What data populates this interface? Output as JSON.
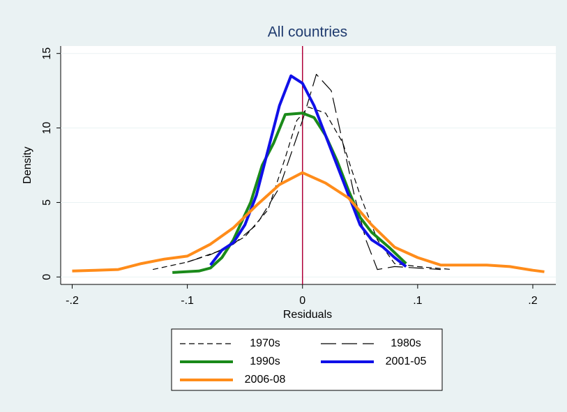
{
  "chart_data": {
    "type": "line",
    "title": "All countries",
    "x_label": "Residuals",
    "y_label": "Density",
    "xlim": [
      -0.21,
      0.22
    ],
    "ylim": [
      -0.5,
      15.5
    ],
    "xticks": [
      {
        "value": -0.2,
        "label": "-.2"
      },
      {
        "value": -0.1,
        "label": "-.1"
      },
      {
        "value": 0,
        "label": "0"
      },
      {
        "value": 0.1,
        "label": ".1"
      },
      {
        "value": 0.2,
        "label": ".2"
      }
    ],
    "yticks": [
      0,
      5,
      10,
      15
    ],
    "xline": 0,
    "xline_color": "#b0003a",
    "grid": true,
    "legend": "bottom",
    "series": [
      {
        "name": "1970s",
        "color": "#000000",
        "dash": "short",
        "width": 1.2,
        "x": [
          -0.13,
          -0.1,
          -0.07,
          -0.05,
          -0.03,
          -0.015,
          -0.005,
          0.005,
          0.02,
          0.035,
          0.05,
          0.065,
          0.08,
          0.1,
          0.13
        ],
        "values": [
          0.5,
          1.0,
          1.8,
          2.7,
          4.5,
          8,
          10.5,
          11.4,
          11,
          9,
          5.5,
          2.5,
          0.9,
          0.7,
          0.5
        ]
      },
      {
        "name": "1980s",
        "color": "#000000",
        "dash": "long",
        "width": 1.2,
        "x": [
          -0.1,
          -0.08,
          -0.06,
          -0.04,
          -0.02,
          0,
          0.012,
          0.025,
          0.035,
          0.045,
          0.055,
          0.065,
          0.08,
          0.1,
          0.12
        ],
        "values": [
          1.0,
          1.5,
          2.2,
          3.5,
          6,
          10.5,
          13.6,
          12.5,
          9,
          5.5,
          2.5,
          0.5,
          0.7,
          0.6,
          0.5
        ]
      },
      {
        "name": "1990s",
        "color": "#1a8a1a",
        "dash": "solid",
        "width": 4,
        "x": [
          -0.113,
          -0.09,
          -0.08,
          -0.07,
          -0.06,
          -0.045,
          -0.035,
          -0.025,
          -0.015,
          0,
          0.01,
          0.02,
          0.03,
          0.04,
          0.05,
          0.06,
          0.075,
          0.09
        ],
        "values": [
          0.3,
          0.4,
          0.6,
          1.3,
          2.5,
          5,
          7.5,
          9,
          10.9,
          11,
          10.7,
          9.5,
          7.8,
          5.8,
          4,
          3,
          2,
          0.9
        ]
      },
      {
        "name": "2001-05",
        "color": "#1010e8",
        "dash": "solid",
        "width": 4,
        "x": [
          -0.08,
          -0.07,
          -0.06,
          -0.05,
          -0.04,
          -0.03,
          -0.02,
          -0.01,
          0,
          0.01,
          0.02,
          0.03,
          0.04,
          0.05,
          0.06,
          0.07,
          0.08,
          0.09
        ],
        "values": [
          0.8,
          1.8,
          2.3,
          3.5,
          5.5,
          8.5,
          11.5,
          13.5,
          13,
          11.5,
          9.5,
          7.5,
          5.5,
          3.5,
          2.5,
          2,
          1.3,
          0.7
        ]
      },
      {
        "name": "2006-08",
        "color": "#ff8c1a",
        "dash": "solid",
        "width": 4,
        "x": [
          -0.2,
          -0.18,
          -0.16,
          -0.14,
          -0.12,
          -0.1,
          -0.08,
          -0.06,
          -0.04,
          -0.02,
          0,
          0.02,
          0.04,
          0.06,
          0.08,
          0.1,
          0.12,
          0.14,
          0.16,
          0.18,
          0.2,
          0.21
        ],
        "values": [
          0.4,
          0.45,
          0.5,
          0.9,
          1.2,
          1.4,
          2.2,
          3.3,
          4.8,
          6.2,
          7,
          6.3,
          5.3,
          3.5,
          2,
          1.3,
          0.8,
          0.8,
          0.8,
          0.7,
          0.45,
          0.35
        ]
      }
    ]
  }
}
